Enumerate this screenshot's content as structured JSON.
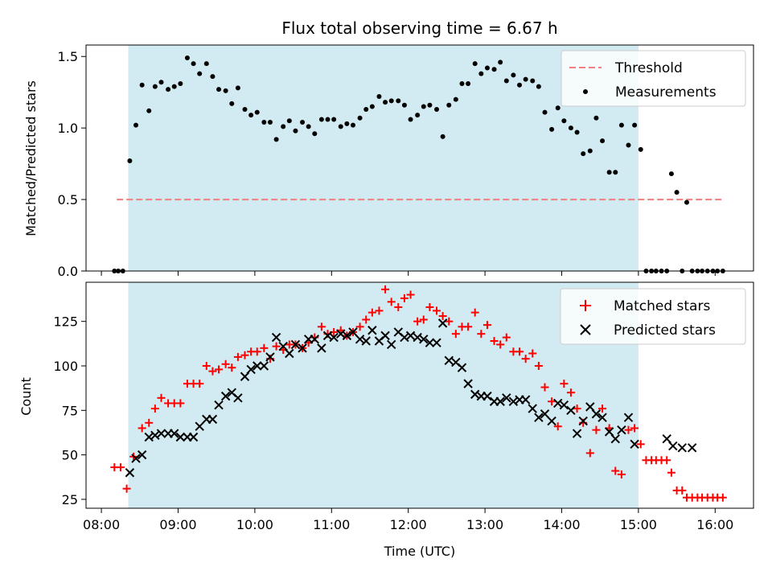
{
  "chart_data": [
    {
      "type": "scatter",
      "title": "Flux total observing time = 6.67 h",
      "xlabel": "",
      "ylabel": "Matched/Predicted stars",
      "ylim": [
        0,
        1.58
      ],
      "yticks": [
        0.0,
        0.5,
        1.0,
        1.5
      ],
      "ytick_labels": [
        "0.0",
        "0.5",
        "1.0",
        "1.5"
      ],
      "xlim_hours": [
        7.8,
        16.5
      ],
      "shaded_span_hours": [
        8.35,
        15.0
      ],
      "shaded_color": "#add8e6",
      "legend_position": "top-right",
      "threshold": {
        "name": "Threshold",
        "y": 0.5,
        "x_range_hours": [
          8.2,
          16.1
        ],
        "color": "#f08080"
      },
      "series": [
        {
          "name": "Measurements",
          "color": "#000000",
          "marker": "dot",
          "x": [
            8.17,
            8.22,
            8.28,
            8.37,
            8.45,
            8.53,
            8.62,
            8.7,
            8.78,
            8.87,
            8.95,
            9.03,
            9.12,
            9.2,
            9.28,
            9.37,
            9.45,
            9.53,
            9.62,
            9.7,
            9.78,
            9.87,
            9.95,
            10.03,
            10.12,
            10.2,
            10.28,
            10.37,
            10.45,
            10.53,
            10.62,
            10.7,
            10.78,
            10.87,
            10.95,
            11.03,
            11.12,
            11.2,
            11.28,
            11.37,
            11.45,
            11.53,
            11.62,
            11.7,
            11.78,
            11.87,
            11.95,
            12.03,
            12.12,
            12.2,
            12.28,
            12.37,
            12.45,
            12.53,
            12.62,
            12.7,
            12.78,
            12.87,
            12.95,
            13.03,
            13.12,
            13.2,
            13.28,
            13.37,
            13.45,
            13.53,
            13.62,
            13.7,
            13.78,
            13.87,
            13.95,
            14.03,
            14.12,
            14.2,
            14.28,
            14.37,
            14.45,
            14.53,
            14.62,
            14.7,
            14.78,
            14.87,
            14.95,
            15.03,
            15.1,
            15.17,
            15.23,
            15.3,
            15.37,
            15.43,
            15.5,
            15.57,
            15.63,
            15.7,
            15.77,
            15.83,
            15.9,
            15.97,
            16.03,
            16.1
          ],
          "y": [
            0.0,
            0.0,
            0.0,
            0.77,
            1.02,
            1.3,
            1.12,
            1.29,
            1.32,
            1.27,
            1.29,
            1.31,
            1.49,
            1.45,
            1.38,
            1.45,
            1.36,
            1.27,
            1.26,
            1.17,
            1.28,
            1.13,
            1.09,
            1.11,
            1.04,
            1.04,
            0.92,
            1.01,
            1.05,
            0.98,
            1.04,
            1.01,
            0.96,
            1.06,
            1.06,
            1.06,
            1.01,
            1.03,
            1.02,
            1.07,
            1.13,
            1.15,
            1.22,
            1.18,
            1.19,
            1.19,
            1.16,
            1.06,
            1.09,
            1.15,
            1.16,
            1.13,
            0.94,
            1.16,
            1.2,
            1.31,
            1.31,
            1.45,
            1.38,
            1.42,
            1.41,
            1.46,
            1.33,
            1.37,
            1.3,
            1.34,
            1.33,
            1.29,
            1.11,
            0.99,
            1.14,
            1.05,
            1.0,
            0.97,
            0.82,
            0.84,
            1.07,
            0.91,
            0.69,
            0.69,
            1.02,
            0.88,
            1.02,
            0.85,
            0.0,
            0.0,
            0.0,
            0.0,
            0.0,
            0.68,
            0.55,
            0.0,
            0.48,
            0.0,
            0.0,
            0.0,
            0.0,
            0.0,
            0.0,
            0.0
          ]
        }
      ]
    },
    {
      "type": "scatter",
      "title": "",
      "xlabel": "Time (UTC)",
      "ylabel": "Count",
      "ylim": [
        20,
        147
      ],
      "yticks": [
        25,
        50,
        75,
        100,
        125
      ],
      "ytick_labels": [
        "25",
        "50",
        "75",
        "100",
        "125"
      ],
      "xlim_hours": [
        7.8,
        16.5
      ],
      "xticks_hours": [
        8,
        9,
        10,
        11,
        12,
        13,
        14,
        15,
        16
      ],
      "xtick_labels": [
        "08:00",
        "09:00",
        "10:00",
        "11:00",
        "12:00",
        "13:00",
        "14:00",
        "15:00",
        "16:00"
      ],
      "shaded_span_hours": [
        8.35,
        15.0
      ],
      "shaded_color": "#add8e6",
      "legend_position": "top-right",
      "series": [
        {
          "name": "Matched stars",
          "color": "#ff0000",
          "marker": "plus",
          "x": [
            8.17,
            8.25,
            8.33,
            8.42,
            8.53,
            8.62,
            8.7,
            8.78,
            8.87,
            8.95,
            9.03,
            9.12,
            9.2,
            9.28,
            9.37,
            9.45,
            9.53,
            9.62,
            9.7,
            9.78,
            9.87,
            9.95,
            10.03,
            10.12,
            10.2,
            10.28,
            10.37,
            10.45,
            10.53,
            10.62,
            10.7,
            10.78,
            10.87,
            10.95,
            11.03,
            11.12,
            11.2,
            11.28,
            11.37,
            11.45,
            11.53,
            11.62,
            11.7,
            11.78,
            11.87,
            11.95,
            12.03,
            12.12,
            12.2,
            12.28,
            12.37,
            12.45,
            12.53,
            12.62,
            12.7,
            12.78,
            12.87,
            12.95,
            13.03,
            13.12,
            13.2,
            13.28,
            13.37,
            13.45,
            13.53,
            13.62,
            13.7,
            13.78,
            13.87,
            13.95,
            14.03,
            14.12,
            14.2,
            14.28,
            14.37,
            14.45,
            14.53,
            14.62,
            14.7,
            14.78,
            14.87,
            14.95,
            15.03,
            15.1,
            15.17,
            15.23,
            15.3,
            15.37,
            15.43,
            15.5,
            15.57,
            15.63,
            15.7,
            15.77,
            15.83,
            15.9,
            15.97,
            16.03,
            16.1
          ],
          "y": [
            43,
            43,
            31,
            49,
            65,
            68,
            76,
            82,
            79,
            79,
            79,
            90,
            90,
            90,
            100,
            97,
            98,
            101,
            99,
            105,
            106,
            108,
            108,
            110,
            104,
            111,
            109,
            112,
            112,
            110,
            113,
            116,
            122,
            118,
            119,
            120,
            117,
            119,
            122,
            126,
            130,
            131,
            143,
            136,
            133,
            138,
            140,
            125,
            126,
            133,
            131,
            128,
            125,
            118,
            122,
            122,
            130,
            118,
            123,
            114,
            112,
            116,
            108,
            108,
            104,
            107,
            100,
            88,
            80,
            66,
            90,
            85,
            76,
            68,
            51,
            64,
            76,
            65,
            41,
            39,
            64,
            65,
            56,
            47,
            47,
            47,
            47,
            47,
            40,
            30,
            30,
            26,
            26,
            26,
            26,
            26,
            26,
            26,
            26
          ],
          "y_note": ""
        },
        {
          "name": "Predicted stars",
          "color": "#000000",
          "marker": "x",
          "x": [
            8.37,
            8.45,
            8.53,
            8.62,
            8.7,
            8.78,
            8.87,
            8.95,
            9.03,
            9.12,
            9.2,
            9.28,
            9.37,
            9.45,
            9.53,
            9.62,
            9.7,
            9.78,
            9.87,
            9.95,
            10.03,
            10.12,
            10.2,
            10.28,
            10.37,
            10.45,
            10.53,
            10.62,
            10.7,
            10.78,
            10.87,
            10.95,
            11.03,
            11.12,
            11.2,
            11.28,
            11.37,
            11.45,
            11.53,
            11.62,
            11.7,
            11.78,
            11.87,
            11.95,
            12.03,
            12.12,
            12.2,
            12.28,
            12.37,
            12.45,
            12.53,
            12.62,
            12.7,
            12.78,
            12.87,
            12.95,
            13.03,
            13.12,
            13.2,
            13.28,
            13.37,
            13.45,
            13.53,
            13.62,
            13.7,
            13.78,
            13.87,
            13.95,
            14.03,
            14.12,
            14.2,
            14.28,
            14.37,
            14.45,
            14.53,
            14.62,
            14.7,
            14.78,
            14.87,
            14.95,
            15.37,
            15.45,
            15.57,
            15.7
          ],
          "y": [
            40,
            48,
            50,
            60,
            61,
            62,
            62,
            62,
            60,
            60,
            60,
            66,
            70,
            70,
            78,
            83,
            85,
            82,
            94,
            98,
            100,
            100,
            105,
            116,
            111,
            107,
            112,
            110,
            115,
            115,
            110,
            117,
            116,
            118,
            117,
            119,
            115,
            114,
            120,
            114,
            117,
            112,
            119,
            116,
            117,
            116,
            115,
            113,
            113,
            124,
            103,
            102,
            99,
            90,
            84,
            83,
            83,
            80,
            80,
            82,
            80,
            81,
            81,
            76,
            71,
            73,
            69,
            79,
            78,
            75,
            62,
            69,
            77,
            73,
            71,
            63,
            59,
            64,
            71,
            56,
            59,
            55,
            54,
            54
          ],
          "y_note": ""
        }
      ]
    }
  ]
}
